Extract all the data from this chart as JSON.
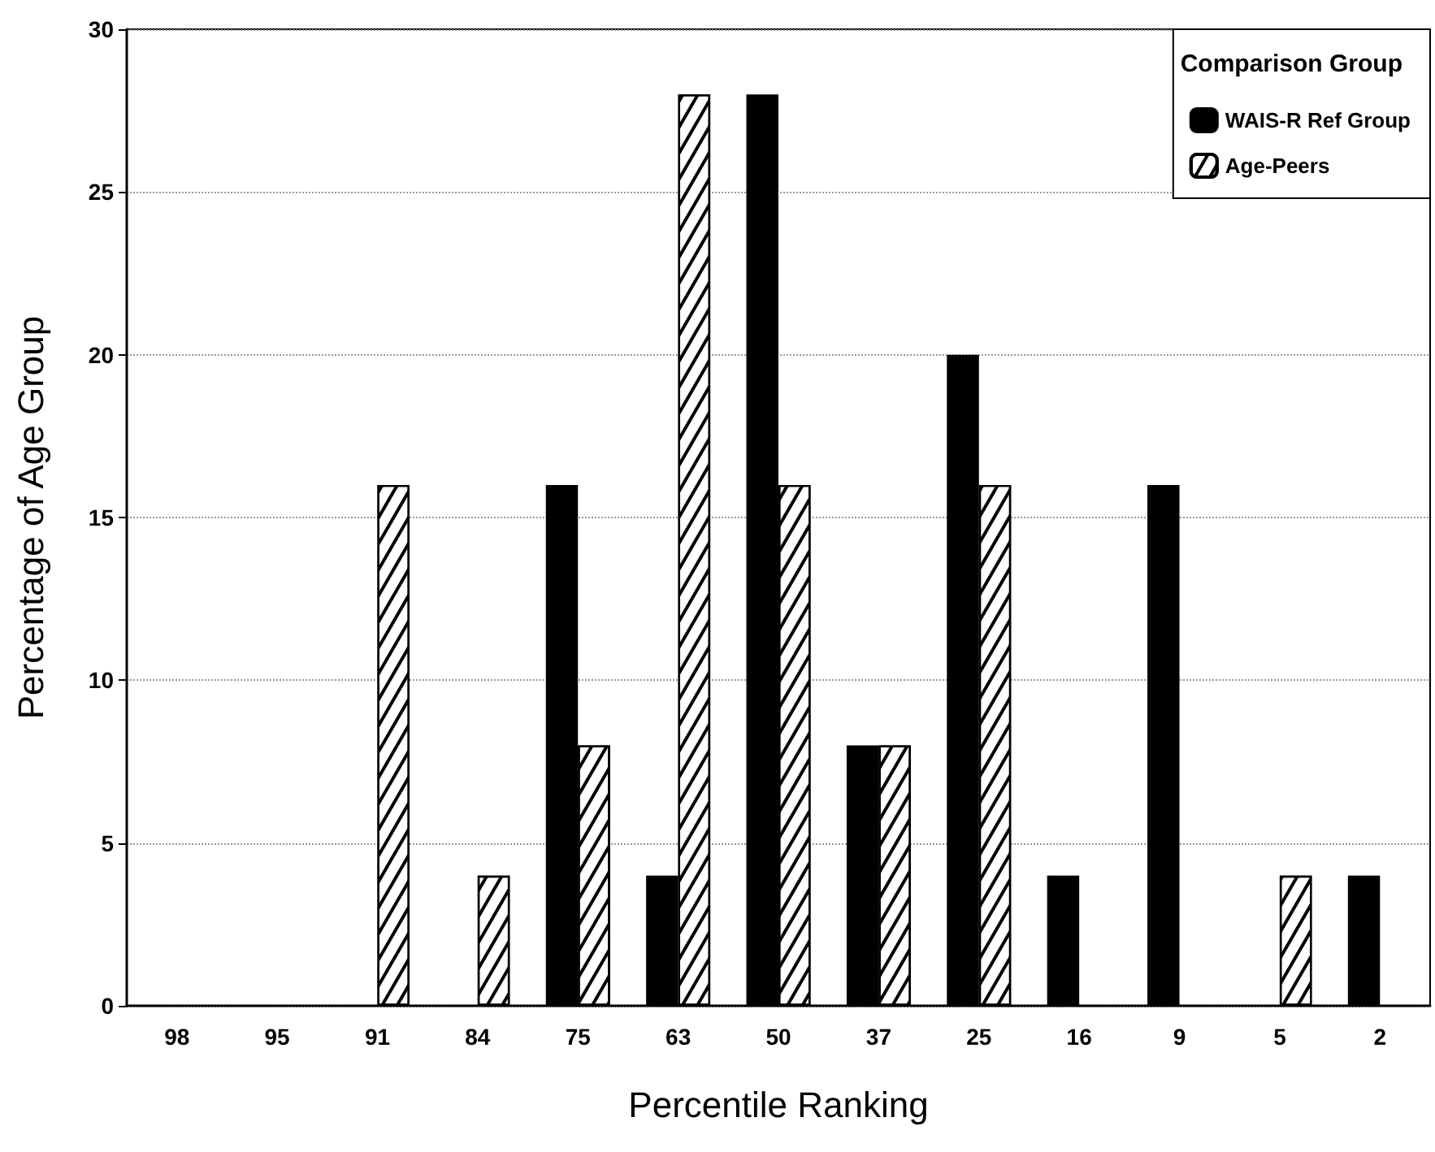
{
  "chart_data": {
    "type": "bar",
    "xlabel": "Percentile Ranking",
    "ylabel": "Percentage of Age Group",
    "legend_title": "Comparison Group",
    "categories": [
      "98",
      "95",
      "91",
      "84",
      "75",
      "63",
      "50",
      "37",
      "25",
      "16",
      "9",
      "5",
      "2"
    ],
    "series": [
      {
        "name": "WAIS-R Ref Group",
        "color": "#000000",
        "values": [
          0,
          0,
          0,
          0,
          16,
          4,
          28,
          8,
          20,
          4,
          16,
          0,
          4
        ]
      },
      {
        "name": "Age-Peers",
        "color": "#ffffff",
        "values": [
          0,
          0,
          16,
          4,
          8,
          28,
          16,
          8,
          16,
          0,
          0,
          4,
          0
        ]
      }
    ],
    "ylim": [
      0,
      30
    ],
    "yticks": [
      0,
      5,
      10,
      15,
      20,
      25,
      30
    ],
    "grid": "y",
    "legend": "top right"
  }
}
